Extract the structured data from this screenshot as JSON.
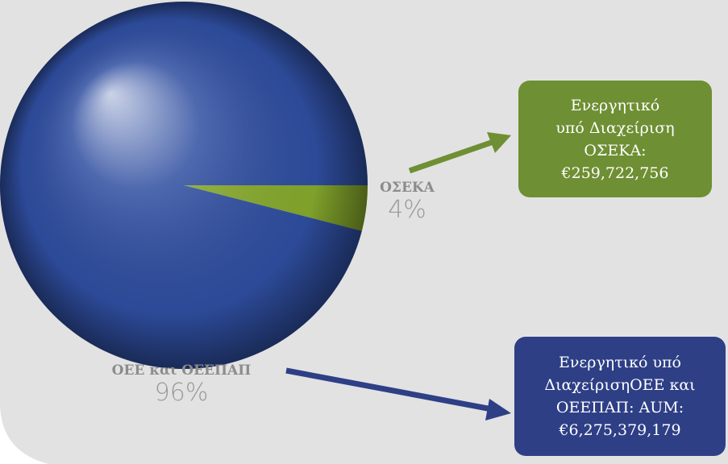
{
  "chart_data": {
    "type": "pie",
    "categories": [
      "ΟΣΕΚΑ",
      "ΟΕΕ και ΟΕΕΠΑΠ"
    ],
    "values": [
      4,
      96
    ],
    "value_labels": [
      "4%",
      "96%"
    ],
    "colors": [
      "#86a92c",
      "#2f4ea0"
    ],
    "annotations": [
      {
        "lines": [
          "Ενεργητικό",
          "υπό Διαχείριση",
          "ΟΣΕΚΑ:",
          "€259,722,756"
        ]
      },
      {
        "lines": [
          "Ενεργητικό υπό",
          "ΔιαχείρισηΟΕΕ και",
          "ΟΕΕΠΑΠ: AUM:",
          "€6,275,379,179"
        ]
      }
    ]
  }
}
